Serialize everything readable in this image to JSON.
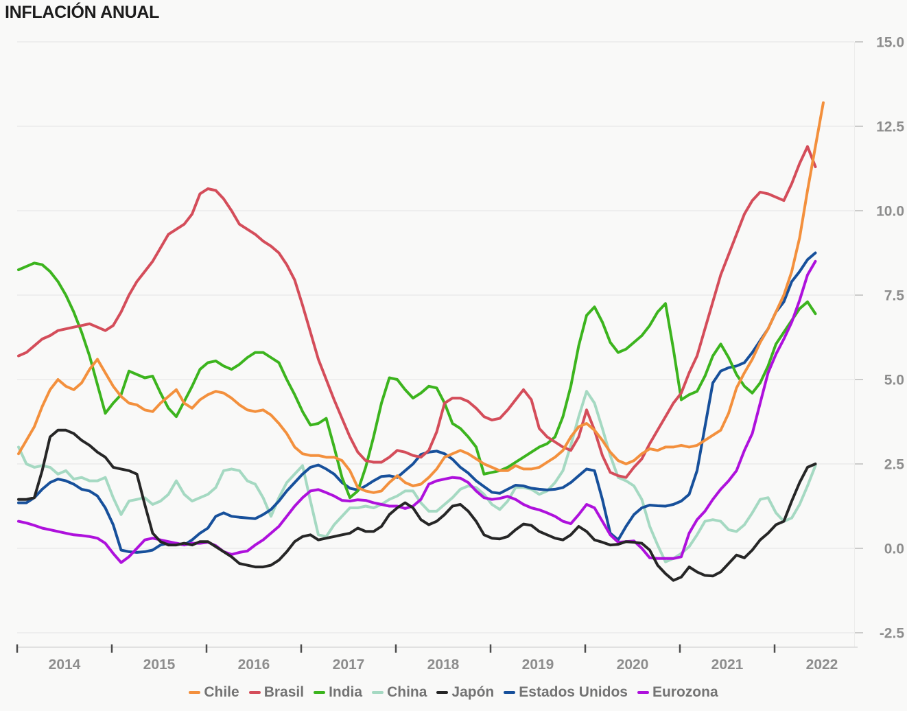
{
  "title": "INFLACIÓN ANUAL",
  "y_axis": {
    "ticks": [
      {
        "label": "15.0",
        "value": 15.0
      },
      {
        "label": "12.5",
        "value": 12.5
      },
      {
        "label": "10.0",
        "value": 10.0
      },
      {
        "label": "7.5",
        "value": 7.5
      },
      {
        "label": "5.0",
        "value": 5.0
      },
      {
        "label": "2.5",
        "value": 2.5
      },
      {
        "label": "0.0",
        "value": 0.0
      },
      {
        "label": "-2.5",
        "value": -2.5
      }
    ]
  },
  "x_axis": {
    "years": [
      "2014",
      "2015",
      "2016",
      "2017",
      "2018",
      "2019",
      "2020",
      "2021",
      "2022"
    ]
  },
  "chart_data": {
    "type": "line",
    "title": "INFLACIÓN ANUAL",
    "frequency": "monthly",
    "x_start": "2014-01",
    "x_end": "2022-07",
    "ylim": [
      -2.5,
      15.0
    ],
    "grid": "horizontal",
    "legend_position": "bottom",
    "series": [
      {
        "name": "Chile",
        "color": "#f3903d",
        "values": [
          2.8,
          3.2,
          3.6,
          4.2,
          4.7,
          5.0,
          4.8,
          4.7,
          4.9,
          5.3,
          5.6,
          5.2,
          4.8,
          4.5,
          4.3,
          4.25,
          4.1,
          4.05,
          4.3,
          4.5,
          4.7,
          4.3,
          4.15,
          4.4,
          4.55,
          4.65,
          4.6,
          4.45,
          4.25,
          4.1,
          4.05,
          4.1,
          3.95,
          3.7,
          3.4,
          3.0,
          2.8,
          2.75,
          2.75,
          2.7,
          2.7,
          2.6,
          2.3,
          1.8,
          1.7,
          1.65,
          1.7,
          1.95,
          2.15,
          1.95,
          1.85,
          1.9,
          2.1,
          2.35,
          2.7,
          2.8,
          2.9,
          2.8,
          2.65,
          2.5,
          2.4,
          2.3,
          2.3,
          2.45,
          2.35,
          2.35,
          2.4,
          2.55,
          2.7,
          2.9,
          3.3,
          3.6,
          3.7,
          3.5,
          3.2,
          2.85,
          2.6,
          2.5,
          2.6,
          2.8,
          2.95,
          2.9,
          3.0,
          3.0,
          3.05,
          3.0,
          3.05,
          3.2,
          3.35,
          3.5,
          4.0,
          4.75,
          5.2,
          5.6,
          6.1,
          6.5,
          7.0,
          7.5,
          8.2,
          9.2,
          10.6,
          11.9,
          13.2
        ]
      },
      {
        "name": "Brasil",
        "color": "#d44d5a",
        "values": [
          5.7,
          5.8,
          6.0,
          6.2,
          6.3,
          6.45,
          6.5,
          6.55,
          6.6,
          6.65,
          6.55,
          6.45,
          6.6,
          7.0,
          7.5,
          7.9,
          8.2,
          8.5,
          8.9,
          9.3,
          9.45,
          9.6,
          9.9,
          10.5,
          10.65,
          10.6,
          10.35,
          10.0,
          9.6,
          9.45,
          9.3,
          9.1,
          8.95,
          8.75,
          8.4,
          7.95,
          7.2,
          6.4,
          5.6,
          5.0,
          4.4,
          3.85,
          3.3,
          2.85,
          2.6,
          2.55,
          2.55,
          2.7,
          2.9,
          2.85,
          2.75,
          2.7,
          2.9,
          3.45,
          4.3,
          4.45,
          4.45,
          4.35,
          4.15,
          3.9,
          3.8,
          3.85,
          4.1,
          4.4,
          4.7,
          4.4,
          3.55,
          3.3,
          3.15,
          3.0,
          2.9,
          3.3,
          4.1,
          3.5,
          2.75,
          2.25,
          2.15,
          2.1,
          2.4,
          2.65,
          3.1,
          3.5,
          3.9,
          4.3,
          4.6,
          5.2,
          5.7,
          6.5,
          7.3,
          8.1,
          8.7,
          9.3,
          9.9,
          10.3,
          10.55,
          10.5,
          10.4,
          10.3,
          10.8,
          11.4,
          11.9,
          11.3
        ]
      },
      {
        "name": "India",
        "color": "#3cb41e",
        "values": [
          8.25,
          8.35,
          8.45,
          8.4,
          8.2,
          7.9,
          7.5,
          7.0,
          6.4,
          5.7,
          4.85,
          4.0,
          4.3,
          4.55,
          5.25,
          5.15,
          5.05,
          5.1,
          4.6,
          4.15,
          3.9,
          4.35,
          4.8,
          5.3,
          5.5,
          5.55,
          5.4,
          5.3,
          5.45,
          5.65,
          5.8,
          5.8,
          5.65,
          5.5,
          5.0,
          4.55,
          4.05,
          3.65,
          3.7,
          3.85,
          3.0,
          2.1,
          1.5,
          1.7,
          2.4,
          3.3,
          4.3,
          5.05,
          5.0,
          4.7,
          4.45,
          4.6,
          4.8,
          4.75,
          4.3,
          3.7,
          3.55,
          3.3,
          3.0,
          2.2,
          2.25,
          2.3,
          2.4,
          2.55,
          2.7,
          2.85,
          3.0,
          3.1,
          3.3,
          3.9,
          4.8,
          6.0,
          6.9,
          7.15,
          6.7,
          6.1,
          5.8,
          5.9,
          6.1,
          6.3,
          6.6,
          7.0,
          7.25,
          5.9,
          4.4,
          4.55,
          4.65,
          5.1,
          5.7,
          6.05,
          5.65,
          5.15,
          4.8,
          4.6,
          4.9,
          5.4,
          6.05,
          6.4,
          6.75,
          7.1,
          7.3,
          6.95
        ]
      },
      {
        "name": "China",
        "color": "#a5d9c2",
        "values": [
          3.0,
          2.5,
          2.4,
          2.45,
          2.4,
          2.2,
          2.3,
          2.05,
          2.1,
          2.0,
          2.0,
          2.1,
          1.5,
          1.0,
          1.4,
          1.45,
          1.5,
          1.3,
          1.4,
          1.6,
          2.0,
          1.6,
          1.4,
          1.5,
          1.6,
          1.8,
          2.3,
          2.35,
          2.3,
          2.0,
          1.9,
          1.5,
          0.95,
          1.5,
          1.95,
          2.2,
          2.45,
          1.4,
          0.4,
          0.35,
          0.7,
          0.95,
          1.2,
          1.2,
          1.25,
          1.2,
          1.3,
          1.45,
          1.55,
          1.7,
          1.7,
          1.35,
          1.1,
          1.1,
          1.3,
          1.5,
          1.75,
          1.85,
          1.8,
          1.6,
          1.3,
          1.15,
          1.4,
          1.8,
          1.8,
          1.75,
          1.6,
          1.7,
          1.95,
          2.3,
          3.05,
          3.9,
          4.65,
          4.3,
          3.55,
          2.75,
          2.1,
          2.0,
          1.85,
          1.45,
          0.65,
          0.1,
          -0.4,
          -0.3,
          -0.15,
          0.05,
          0.4,
          0.8,
          0.85,
          0.8,
          0.55,
          0.5,
          0.7,
          1.05,
          1.45,
          1.5,
          1.05,
          0.8,
          0.9,
          1.3,
          1.85,
          2.45
        ]
      },
      {
        "name": "Japón",
        "color": "#262626",
        "values": [
          1.45,
          1.45,
          1.5,
          2.3,
          3.3,
          3.5,
          3.5,
          3.4,
          3.2,
          3.05,
          2.85,
          2.7,
          2.4,
          2.35,
          2.3,
          2.2,
          1.3,
          0.45,
          0.2,
          0.1,
          0.1,
          0.15,
          0.1,
          0.2,
          0.2,
          0.05,
          -0.1,
          -0.25,
          -0.45,
          -0.5,
          -0.55,
          -0.55,
          -0.5,
          -0.35,
          -0.1,
          0.2,
          0.35,
          0.4,
          0.25,
          0.3,
          0.35,
          0.4,
          0.45,
          0.6,
          0.5,
          0.5,
          0.65,
          1.0,
          1.2,
          1.35,
          1.2,
          0.85,
          0.7,
          0.8,
          1.0,
          1.25,
          1.3,
          1.1,
          0.8,
          0.4,
          0.3,
          0.28,
          0.35,
          0.55,
          0.72,
          0.68,
          0.5,
          0.4,
          0.3,
          0.25,
          0.4,
          0.65,
          0.5,
          0.25,
          0.18,
          0.1,
          0.12,
          0.2,
          0.18,
          0.15,
          -0.05,
          -0.5,
          -0.75,
          -0.95,
          -0.85,
          -0.55,
          -0.7,
          -0.8,
          -0.82,
          -0.7,
          -0.45,
          -0.2,
          -0.28,
          -0.05,
          0.25,
          0.45,
          0.7,
          0.8,
          1.4,
          1.95,
          2.4,
          2.5
        ]
      },
      {
        "name": "Estados Unidos",
        "color": "#17509b",
        "values": [
          1.35,
          1.35,
          1.5,
          1.75,
          1.95,
          2.05,
          2.0,
          1.9,
          1.75,
          1.7,
          1.55,
          1.2,
          0.7,
          -0.05,
          -0.1,
          -0.12,
          -0.1,
          -0.05,
          0.1,
          0.15,
          0.15,
          0.1,
          0.25,
          0.45,
          0.6,
          0.95,
          1.05,
          0.95,
          0.92,
          0.9,
          0.88,
          1.0,
          1.15,
          1.4,
          1.7,
          1.95,
          2.2,
          2.4,
          2.47,
          2.35,
          2.2,
          1.95,
          1.78,
          1.73,
          1.85,
          2.0,
          2.13,
          2.15,
          2.1,
          2.3,
          2.5,
          2.78,
          2.85,
          2.88,
          2.8,
          2.64,
          2.4,
          2.23,
          2.0,
          1.83,
          1.66,
          1.63,
          1.75,
          1.87,
          1.85,
          1.78,
          1.75,
          1.73,
          1.75,
          1.8,
          1.95,
          2.15,
          2.35,
          2.3,
          1.45,
          0.45,
          0.25,
          0.65,
          1.0,
          1.2,
          1.28,
          1.26,
          1.25,
          1.3,
          1.4,
          1.6,
          2.3,
          3.6,
          4.9,
          5.25,
          5.35,
          5.4,
          5.5,
          5.8,
          6.15,
          6.5,
          7.0,
          7.3,
          7.9,
          8.2,
          8.55,
          8.75
        ]
      },
      {
        "name": "Eurozona",
        "color": "#ae11dc",
        "values": [
          0.8,
          0.75,
          0.68,
          0.6,
          0.55,
          0.5,
          0.45,
          0.4,
          0.38,
          0.35,
          0.3,
          0.15,
          -0.15,
          -0.42,
          -0.25,
          0.0,
          0.25,
          0.3,
          0.25,
          0.2,
          0.15,
          0.1,
          0.15,
          0.15,
          0.18,
          0.08,
          -0.1,
          -0.18,
          -0.12,
          -0.08,
          0.1,
          0.25,
          0.45,
          0.65,
          0.95,
          1.25,
          1.5,
          1.7,
          1.74,
          1.65,
          1.55,
          1.42,
          1.4,
          1.44,
          1.42,
          1.35,
          1.3,
          1.25,
          1.25,
          1.18,
          1.25,
          1.45,
          1.9,
          2.0,
          2.05,
          2.1,
          2.08,
          1.95,
          1.7,
          1.5,
          1.45,
          1.48,
          1.54,
          1.45,
          1.3,
          1.2,
          1.14,
          1.05,
          0.95,
          0.8,
          0.73,
          1.0,
          1.3,
          1.2,
          0.8,
          0.4,
          0.18,
          0.2,
          0.22,
          0.0,
          -0.28,
          -0.3,
          -0.3,
          -0.3,
          -0.25,
          0.45,
          0.85,
          1.1,
          1.45,
          1.75,
          2.0,
          2.3,
          2.9,
          3.4,
          4.3,
          5.2,
          5.75,
          6.2,
          6.7,
          7.35,
          8.1,
          8.5
        ]
      }
    ]
  }
}
